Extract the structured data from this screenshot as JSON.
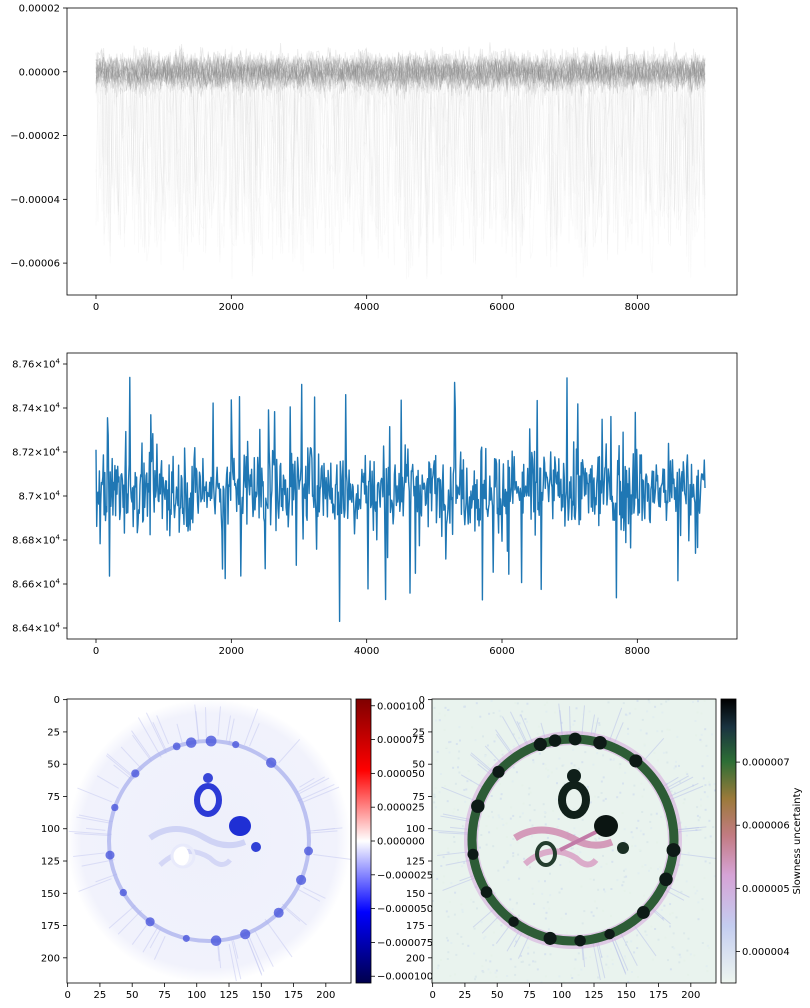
{
  "chart_data": [
    {
      "type": "line",
      "description_text": "",
      "x_range": [
        0,
        9000
      ],
      "ylim": [
        -7e-05,
        2e-05
      ],
      "xticks": [
        "0",
        "2000",
        "4000",
        "6000",
        "8000"
      ],
      "yticks": [
        "0.00002",
        "0.00000",
        "−0.00002",
        "−0.00004",
        "−0.00006"
      ],
      "ytick_values": [
        2e-05,
        0.0,
        -2e-05,
        -4e-05,
        -6e-05
      ],
      "xtick_values": [
        0,
        2000,
        4000,
        6000,
        8000
      ],
      "series_color": "#808080",
      "dense_band": {
        "center": 0.0,
        "half_width": 9e-06
      },
      "faint_outliers": {
        "min": -6.5e-05,
        "max": -2e-05
      },
      "title": "",
      "xlabel": "",
      "ylabel": ""
    },
    {
      "type": "line",
      "x_range": [
        0,
        9000
      ],
      "ylim": [
        86350,
        87650
      ],
      "xticks": [
        "0",
        "2000",
        "4000",
        "6000",
        "8000"
      ],
      "xtick_values": [
        0,
        2000,
        4000,
        6000,
        8000
      ],
      "yticks": [
        {
          "mantissa": "8.76",
          "exp": "4",
          "value": 87600
        },
        {
          "mantissa": "8.74",
          "exp": "4",
          "value": 87400
        },
        {
          "mantissa": "8.72",
          "exp": "4",
          "value": 87200
        },
        {
          "mantissa": "8.7",
          "exp": "4",
          "value": 87000
        },
        {
          "mantissa": "8.68",
          "exp": "4",
          "value": 86800
        },
        {
          "mantissa": "8.66",
          "exp": "4",
          "value": 86600
        },
        {
          "mantissa": "8.64",
          "exp": "4",
          "value": 86400
        }
      ],
      "series_color": "#1f77b4",
      "mean": 87030,
      "typical_range": [
        86720,
        87450
      ],
      "extremes": {
        "max": 87650,
        "min": 86430,
        "min_at_x": 3600
      },
      "title": "",
      "xlabel": "",
      "ylabel": ""
    },
    {
      "type": "heatmap",
      "colormap": "seismic",
      "x_range": [
        0,
        220
      ],
      "y_range": [
        0,
        220
      ],
      "xticks": [
        "0",
        "25",
        "50",
        "75",
        "100",
        "125",
        "150",
        "175",
        "200"
      ],
      "yticks": [
        "0",
        "25",
        "50",
        "75",
        "100",
        "125",
        "150",
        "175",
        "200"
      ],
      "tick_values": [
        0,
        25,
        50,
        75,
        100,
        125,
        150,
        175,
        200
      ],
      "colorbar_ticks": [
        "0.000100",
        "0.000075",
        "0.000050",
        "0.000025",
        "0.000000",
        "−0.000025",
        "−0.000050",
        "−0.000075",
        "−0.000100"
      ],
      "colorbar_values": [
        0.0001,
        7.5e-05,
        5e-05,
        2.5e-05,
        0,
        -2.5e-05,
        -5e-05,
        -7.5e-05,
        -0.0001
      ],
      "colorbar_range": [
        -0.000105,
        0.000105
      ],
      "colorbar_label": ""
    },
    {
      "type": "heatmap",
      "colormap": "cubehelix_r",
      "x_range": [
        0,
        220
      ],
      "y_range": [
        0,
        220
      ],
      "xticks": [
        "0",
        "25",
        "50",
        "75",
        "100",
        "125",
        "150",
        "175",
        "200"
      ],
      "yticks": [
        "0",
        "25",
        "50",
        "75",
        "100",
        "125",
        "150",
        "175",
        "200"
      ],
      "tick_values": [
        0,
        25,
        50,
        75,
        100,
        125,
        150,
        175,
        200
      ],
      "colorbar_ticks": [
        "0.000007",
        "0.000006",
        "0.000005",
        "0.000004"
      ],
      "colorbar_values": [
        7e-06,
        6e-06,
        5e-06,
        4e-06
      ],
      "colorbar_range": [
        3.5e-06,
        8e-06
      ],
      "colorbar_label": "Slowness uncertainty"
    }
  ]
}
